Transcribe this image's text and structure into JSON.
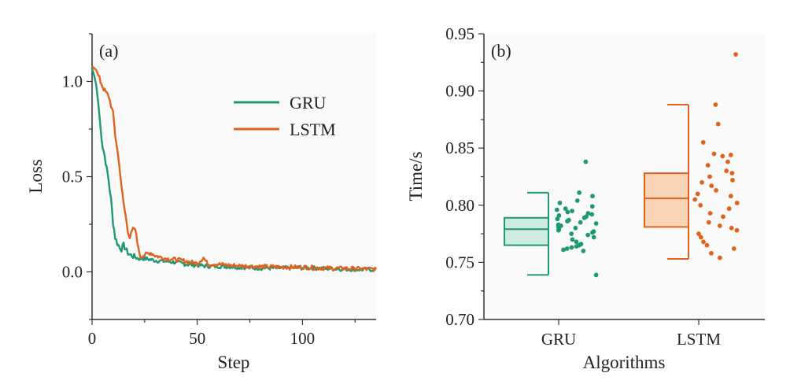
{
  "colors": {
    "gru": "#1f9873",
    "lstm": "#e0621f",
    "gru_fill": "#cdebe1",
    "lstm_fill": "#fbd3b7",
    "axis": "#333333",
    "plot_bg": "#fafafa"
  },
  "chart_data": [
    {
      "type": "line",
      "panel_label": "(a)",
      "title": "",
      "xlabel": "Step",
      "ylabel": "Loss",
      "xlim": [
        0,
        135
      ],
      "ylim": [
        -0.25,
        1.25
      ],
      "xticks": [
        0,
        50,
        100
      ],
      "xtick_labels": [
        "0",
        "50",
        "100"
      ],
      "yticks": [
        0.0,
        0.5,
        1.0
      ],
      "ytick_labels": [
        "0.0",
        "0.5",
        "1.0"
      ],
      "legend_position": "top-right",
      "series": [
        {
          "name": "GRU",
          "color_key": "gru",
          "points": [
            [
              0,
              1.07
            ],
            [
              1,
              1.03
            ],
            [
              2,
              0.98
            ],
            [
              3,
              0.88
            ],
            [
              4,
              0.76
            ],
            [
              5,
              0.66
            ],
            [
              6,
              0.61
            ],
            [
              7,
              0.54
            ],
            [
              8,
              0.47
            ],
            [
              9,
              0.38
            ],
            [
              10,
              0.26
            ],
            [
              11,
              0.18
            ],
            [
              12,
              0.15
            ],
            [
              13,
              0.13
            ],
            [
              14,
              0.12
            ],
            [
              15,
              0.14
            ],
            [
              16,
              0.12
            ],
            [
              17,
              0.1
            ],
            [
              18,
              0.09
            ],
            [
              20,
              0.08
            ],
            [
              22,
              0.07
            ],
            [
              25,
              0.07
            ],
            [
              30,
              0.06
            ],
            [
              35,
              0.055
            ],
            [
              40,
              0.05
            ],
            [
              45,
              0.04
            ],
            [
              50,
              0.035
            ],
            [
              55,
              0.03
            ],
            [
              60,
              0.03
            ],
            [
              65,
              0.028
            ],
            [
              70,
              0.025
            ],
            [
              80,
              0.02
            ],
            [
              90,
              0.02
            ],
            [
              100,
              0.022
            ],
            [
              110,
              0.018
            ],
            [
              120,
              0.015
            ],
            [
              130,
              0.012
            ],
            [
              135,
              0.012
            ]
          ]
        },
        {
          "name": "LSTM",
          "color_key": "lstm",
          "points": [
            [
              0,
              1.08
            ],
            [
              2,
              1.06
            ],
            [
              4,
              1.0
            ],
            [
              6,
              0.95
            ],
            [
              8,
              0.92
            ],
            [
              10,
              0.83
            ],
            [
              11,
              0.72
            ],
            [
              12,
              0.64
            ],
            [
              13,
              0.56
            ],
            [
              14,
              0.44
            ],
            [
              15,
              0.36
            ],
            [
              16,
              0.29
            ],
            [
              17,
              0.22
            ],
            [
              18,
              0.18
            ],
            [
              19,
              0.21
            ],
            [
              20,
              0.23
            ],
            [
              21,
              0.2
            ],
            [
              22,
              0.12
            ],
            [
              23,
              0.08
            ],
            [
              25,
              0.09
            ],
            [
              28,
              0.1
            ],
            [
              30,
              0.085
            ],
            [
              35,
              0.07
            ],
            [
              40,
              0.065
            ],
            [
              45,
              0.055
            ],
            [
              50,
              0.045
            ],
            [
              53,
              0.075
            ],
            [
              55,
              0.04
            ],
            [
              60,
              0.04
            ],
            [
              65,
              0.035
            ],
            [
              70,
              0.032
            ],
            [
              80,
              0.028
            ],
            [
              90,
              0.025
            ],
            [
              100,
              0.025
            ],
            [
              110,
              0.02
            ],
            [
              120,
              0.018
            ],
            [
              130,
              0.015
            ],
            [
              135,
              0.015
            ]
          ]
        }
      ]
    },
    {
      "type": "box",
      "panel_label": "(b)",
      "title": "",
      "xlabel": "Algorithms",
      "ylabel": "Time/s",
      "ylim": [
        0.7,
        0.95
      ],
      "yticks": [
        0.7,
        0.75,
        0.8,
        0.85,
        0.9,
        0.95
      ],
      "ytick_labels": [
        "0.70",
        "0.75",
        "0.80",
        "0.85",
        "0.90",
        "0.95"
      ],
      "categories": [
        "GRU",
        "LSTM"
      ],
      "series": [
        {
          "name": "GRU",
          "color_key": "gru",
          "whisker_low": 0.739,
          "q1": 0.765,
          "median": 0.779,
          "q3": 0.789,
          "whisker_high": 0.811,
          "points": [
            0.838,
            0.811,
            0.808,
            0.804,
            0.802,
            0.799,
            0.797,
            0.796,
            0.795,
            0.794,
            0.793,
            0.792,
            0.791,
            0.79,
            0.789,
            0.788,
            0.787,
            0.786,
            0.785,
            0.784,
            0.783,
            0.782,
            0.781,
            0.78,
            0.779,
            0.778,
            0.777,
            0.776,
            0.775,
            0.774,
            0.772,
            0.77,
            0.768,
            0.766,
            0.765,
            0.764,
            0.763,
            0.762,
            0.761,
            0.76,
            0.739
          ]
        },
        {
          "name": "LSTM",
          "color_key": "lstm",
          "whisker_low": 0.753,
          "q1": 0.781,
          "median": 0.806,
          "q3": 0.828,
          "whisker_high": 0.888,
          "points": [
            0.932,
            0.888,
            0.871,
            0.855,
            0.845,
            0.844,
            0.843,
            0.838,
            0.835,
            0.83,
            0.828,
            0.825,
            0.822,
            0.82,
            0.817,
            0.813,
            0.81,
            0.808,
            0.805,
            0.802,
            0.8,
            0.797,
            0.793,
            0.79,
            0.785,
            0.782,
            0.78,
            0.778,
            0.775,
            0.772,
            0.768,
            0.765,
            0.762,
            0.758,
            0.754
          ]
        }
      ]
    }
  ]
}
